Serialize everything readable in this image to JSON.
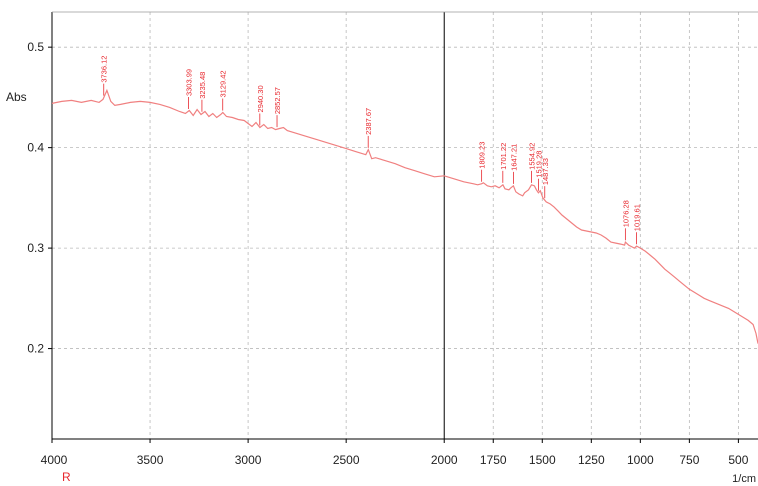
{
  "chart_data": {
    "type": "line",
    "ylabel": "Abs",
    "xunit": "1/cm",
    "xmark": "R",
    "xlim": [
      4000,
      400
    ],
    "ylim": [
      0.11,
      0.535
    ],
    "grid": true,
    "x_ticks": [
      4000,
      3500,
      3000,
      2500,
      2000,
      1750,
      1500,
      1250,
      1000,
      750,
      500
    ],
    "x_tick_labels": [
      "4000",
      "3500",
      "3000",
      "2500",
      "2000",
      "1750",
      "1500",
      "1250",
      "1000",
      "750",
      "500"
    ],
    "y_ticks": [
      0.5,
      0.4,
      0.3,
      0.2
    ],
    "y_tick_labels": [
      "0.5",
      "0.4",
      "0.3",
      "0.2"
    ],
    "divider_x": 2000,
    "colors": {
      "trace": "#f08080",
      "peaks": "#e8282e",
      "axis": "#000000",
      "grid": "#b9b9b9"
    },
    "series": [
      {
        "x": [
          4000,
          3950,
          3900,
          3850,
          3800,
          3760,
          3740,
          3720,
          3700,
          3680,
          3650,
          3600,
          3550,
          3500,
          3450,
          3400,
          3350,
          3320,
          3300,
          3280,
          3260,
          3240,
          3220,
          3200,
          3180,
          3160,
          3140,
          3129,
          3110,
          3080,
          3050,
          3020,
          3000,
          2980,
          2960,
          2940,
          2920,
          2900,
          2880,
          2860,
          2840,
          2820,
          2800,
          2750,
          2700,
          2650,
          2600,
          2550,
          2500,
          2450,
          2400,
          2387,
          2370,
          2350,
          2300,
          2250,
          2200,
          2150,
          2100,
          2050,
          2000,
          1950,
          1900,
          1850,
          1830,
          1810,
          1800,
          1780,
          1760,
          1740,
          1720,
          1701,
          1690,
          1670,
          1660,
          1647,
          1635,
          1620,
          1600,
          1590,
          1570,
          1555,
          1540,
          1530,
          1520,
          1510,
          1497,
          1480,
          1460,
          1440,
          1420,
          1400,
          1375,
          1350,
          1325,
          1300,
          1275,
          1250,
          1225,
          1200,
          1175,
          1150,
          1125,
          1100,
          1080,
          1076,
          1060,
          1040,
          1030,
          1019,
          1000,
          975,
          950,
          925,
          900,
          875,
          850,
          825,
          800,
          775,
          750,
          725,
          700,
          675,
          650,
          625,
          600,
          575,
          550,
          525,
          500,
          475,
          450,
          425,
          410,
          400
        ],
        "y": [
          0.444,
          0.446,
          0.447,
          0.445,
          0.447,
          0.445,
          0.448,
          0.457,
          0.446,
          0.442,
          0.443,
          0.445,
          0.446,
          0.445,
          0.443,
          0.44,
          0.436,
          0.434,
          0.437,
          0.432,
          0.438,
          0.433,
          0.436,
          0.431,
          0.434,
          0.43,
          0.433,
          0.435,
          0.431,
          0.43,
          0.428,
          0.427,
          0.424,
          0.421,
          0.425,
          0.42,
          0.423,
          0.419,
          0.42,
          0.418,
          0.419,
          0.42,
          0.417,
          0.414,
          0.411,
          0.408,
          0.405,
          0.402,
          0.399,
          0.396,
          0.393,
          0.398,
          0.389,
          0.39,
          0.387,
          0.384,
          0.38,
          0.377,
          0.374,
          0.371,
          0.372,
          0.369,
          0.366,
          0.364,
          0.363,
          0.364,
          0.365,
          0.362,
          0.361,
          0.362,
          0.36,
          0.363,
          0.359,
          0.358,
          0.36,
          0.362,
          0.356,
          0.354,
          0.352,
          0.355,
          0.358,
          0.363,
          0.362,
          0.358,
          0.355,
          0.357,
          0.35,
          0.346,
          0.344,
          0.341,
          0.337,
          0.333,
          0.329,
          0.325,
          0.321,
          0.318,
          0.317,
          0.316,
          0.315,
          0.313,
          0.31,
          0.306,
          0.305,
          0.304,
          0.303,
          0.306,
          0.303,
          0.301,
          0.3,
          0.302,
          0.3,
          0.297,
          0.293,
          0.289,
          0.284,
          0.279,
          0.275,
          0.271,
          0.267,
          0.263,
          0.259,
          0.256,
          0.253,
          0.25,
          0.248,
          0.246,
          0.244,
          0.242,
          0.24,
          0.237,
          0.234,
          0.231,
          0.228,
          0.224,
          0.215,
          0.205
        ]
      }
    ],
    "peaks": [
      {
        "x": 3736.12,
        "label": "3736.12"
      },
      {
        "x": 3303.99,
        "label": "3303.99"
      },
      {
        "x": 3235.48,
        "label": "3235.48"
      },
      {
        "x": 3129.42,
        "label": "3129.42"
      },
      {
        "x": 2940.3,
        "label": "2940.30"
      },
      {
        "x": 2852.57,
        "label": "2852.57"
      },
      {
        "x": 2387.67,
        "label": "2387.67"
      },
      {
        "x": 1809.23,
        "label": "1809.23"
      },
      {
        "x": 1701.22,
        "label": "1701.22"
      },
      {
        "x": 1647.21,
        "label": "1647.21"
      },
      {
        "x": 1554.92,
        "label": "1554.92"
      },
      {
        "x": 1519.28,
        "label": "1519.28"
      },
      {
        "x": 1487.33,
        "label": "1487.33"
      },
      {
        "x": 1076.28,
        "label": "1076.28"
      },
      {
        "x": 1019.61,
        "label": "1019.61"
      }
    ]
  }
}
